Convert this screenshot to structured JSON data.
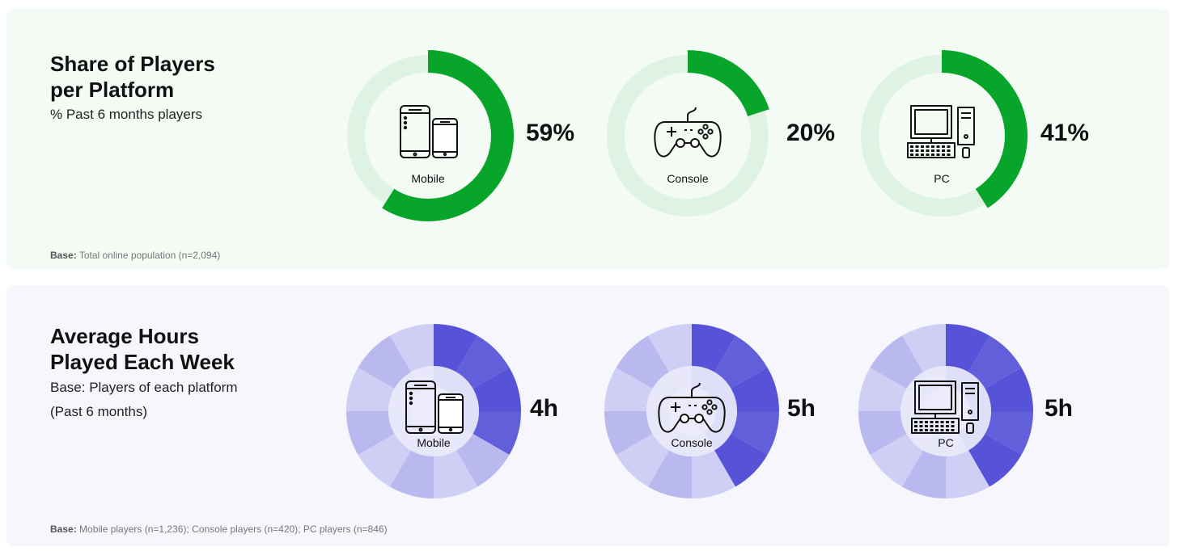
{
  "top": {
    "title_line1": "Share of Players",
    "title_line2": "per Platform",
    "subtitle": "% Past 6 months players",
    "base_label": "Base:",
    "base_text": "Total online population (n=2,094)"
  },
  "bottom": {
    "title_line1": "Average Hours",
    "title_line2": "Played Each Week",
    "subtitle_line1": "Base: Players of each platform",
    "subtitle_line2": "(Past 6 months)",
    "base_label": "Base:",
    "base_text": "Mobile players (n=1,236); Console players (n=420); PC players (n=846)"
  },
  "colors": {
    "green": "#07a62b",
    "green_track": "#dff3e4",
    "purple": "#5653d8",
    "purple_light": "#b9b8ef",
    "purple_lighter": "#cfcef5",
    "purple_center": "#e9e9fa"
  },
  "chart_data": [
    {
      "type": "pie",
      "title": "Share of Players per Platform",
      "subtitle": "% Past 6 months players",
      "categories": [
        "Mobile",
        "Console",
        "PC"
      ],
      "values": [
        59,
        20,
        41
      ],
      "value_labels": [
        "59%",
        "20%",
        "41%"
      ],
      "icons": [
        "mobile-icon",
        "gamepad-icon",
        "desktop-pc-icon"
      ]
    },
    {
      "type": "pie",
      "title": "Average Hours Played Each Week",
      "subtitle": "Base: Players of each platform (Past 6 months)",
      "categories": [
        "Mobile",
        "Console",
        "PC"
      ],
      "values": [
        4,
        5,
        5
      ],
      "segments_total": 12,
      "value_labels": [
        "4h",
        "5h",
        "5h"
      ],
      "icons": [
        "mobile-icon",
        "gamepad-icon",
        "desktop-pc-icon"
      ]
    }
  ]
}
